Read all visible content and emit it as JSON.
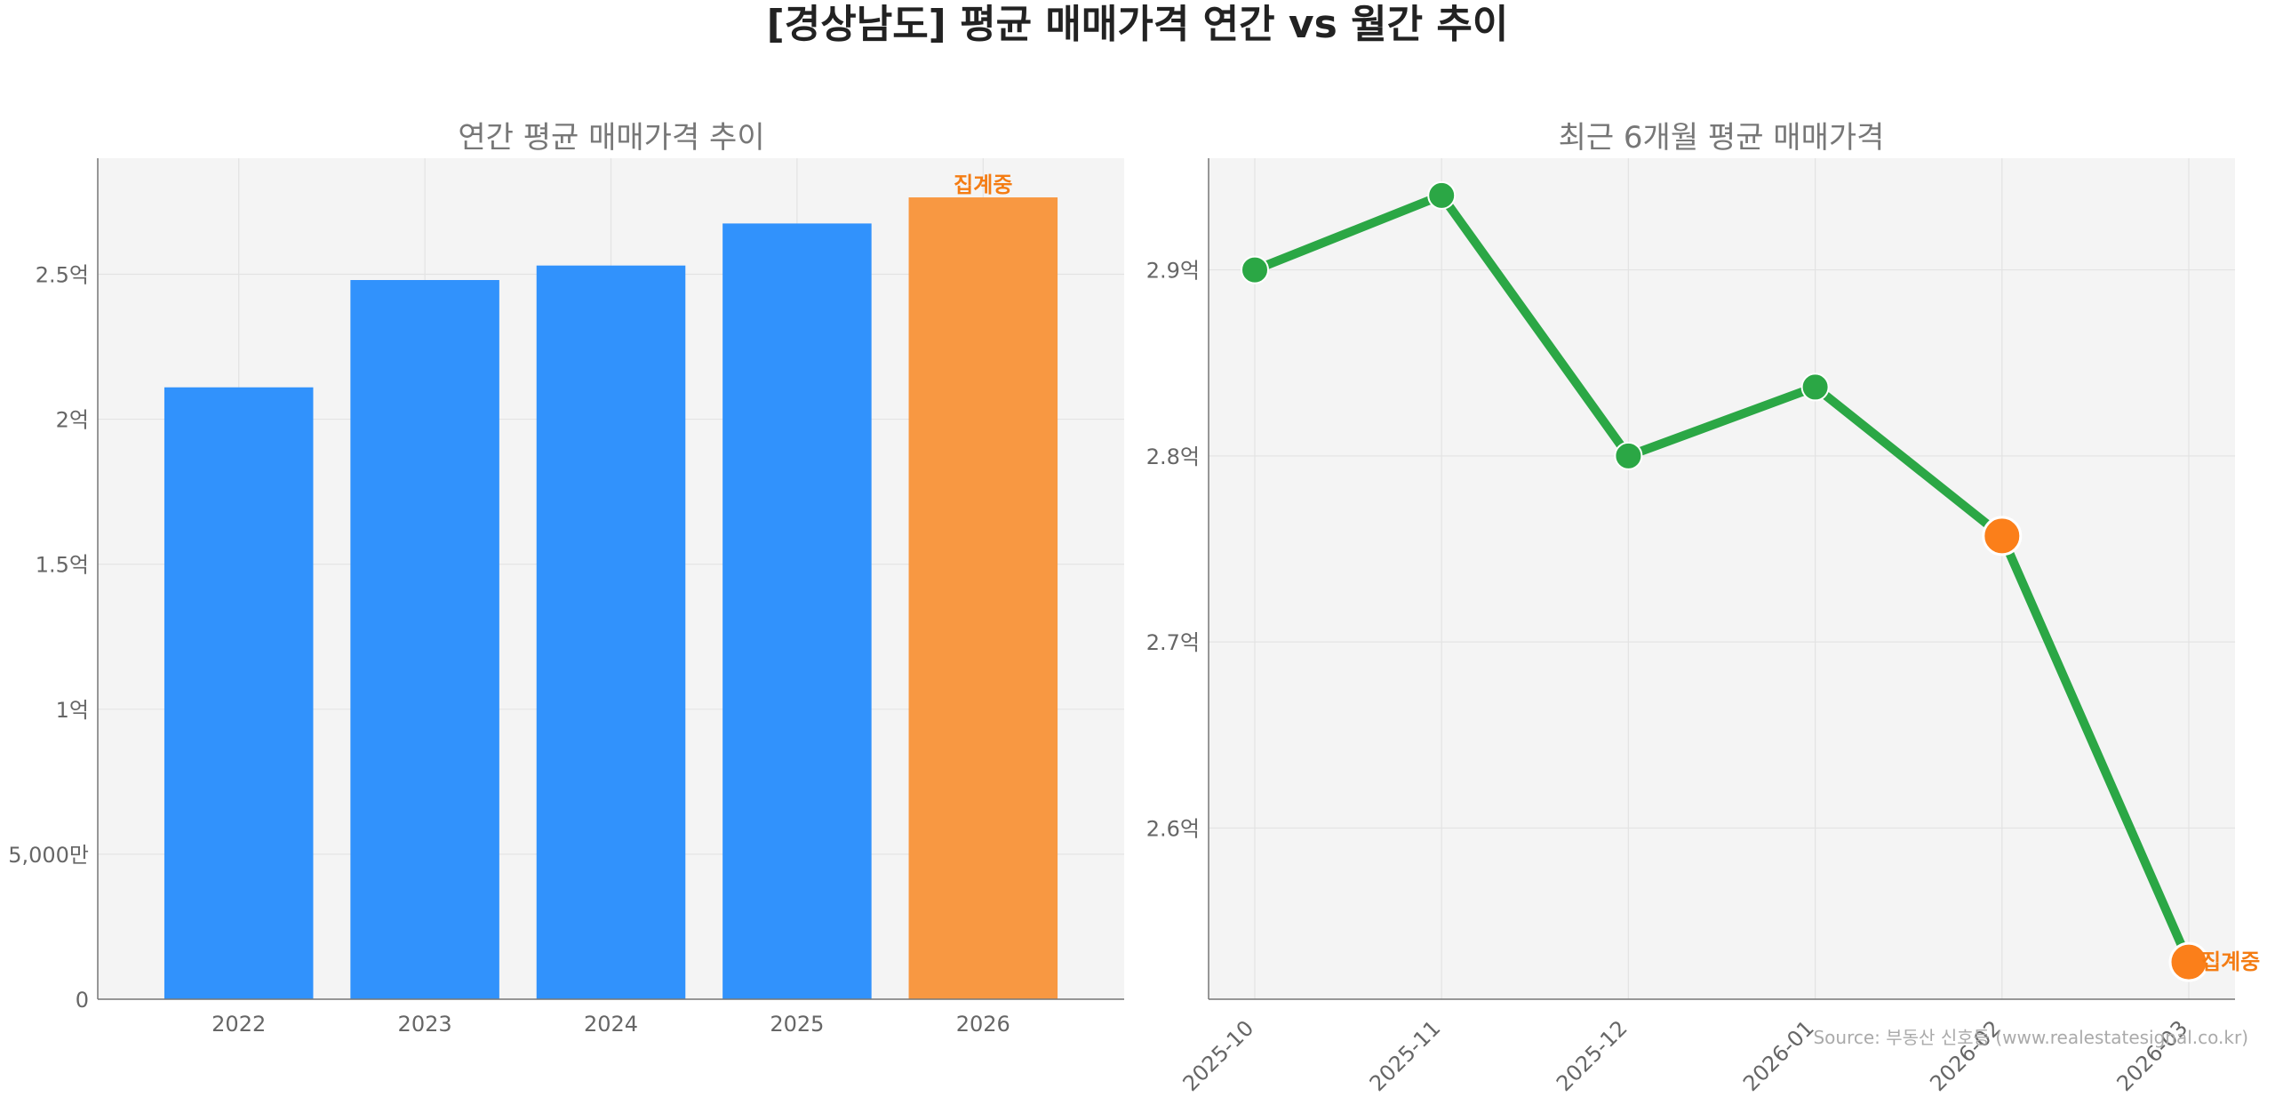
{
  "page": {
    "title": "[경상남도] 평균 매매가격 연간 vs 월간 추이",
    "source": "Source: 부동산 신호등 (www.realestatesignal.co.kr)"
  },
  "colors": {
    "bar_main": "#3192FC",
    "bar_partial": "#F89842",
    "line": "#2BA745",
    "point": "#2BA745",
    "point_highlight": "#FB7F1A",
    "annotation": "#F47C13",
    "panel_bg": "#F4F4F4"
  },
  "chart_data": [
    {
      "type": "bar",
      "title": "연간 평균 매매가격 추이",
      "categories": [
        "2022",
        "2023",
        "2024",
        "2025",
        "2026"
      ],
      "values": [
        211000000,
        248000000,
        253000000,
        267500000,
        276500000
      ],
      "ylim": [
        0,
        290000000
      ],
      "yticks": [
        0,
        50000000,
        100000000,
        150000000,
        200000000,
        250000000
      ],
      "ytick_labels": [
        "0",
        "5,000만",
        "1억",
        "1.5억",
        "2억",
        "2.5억"
      ],
      "highlight_index": 4,
      "annotation": "집계중",
      "grid": true
    },
    {
      "type": "line",
      "title": "최근 6개월 평균 매매가격",
      "x": [
        "2025-10",
        "2025-11",
        "2025-12",
        "2026-01",
        "2026-02",
        "2026-03"
      ],
      "values": [
        290000000,
        294000000,
        280000000,
        283700000,
        275700000,
        252800000
      ],
      "ylim": [
        250800000,
        296000000
      ],
      "yticks": [
        260000000,
        270000000,
        280000000,
        290000000
      ],
      "ytick_labels": [
        "2.6억",
        "2.7억",
        "2.8억",
        "2.9억"
      ],
      "highlight_indices": [
        4,
        5
      ],
      "annotation": "집계중",
      "grid": true
    }
  ]
}
